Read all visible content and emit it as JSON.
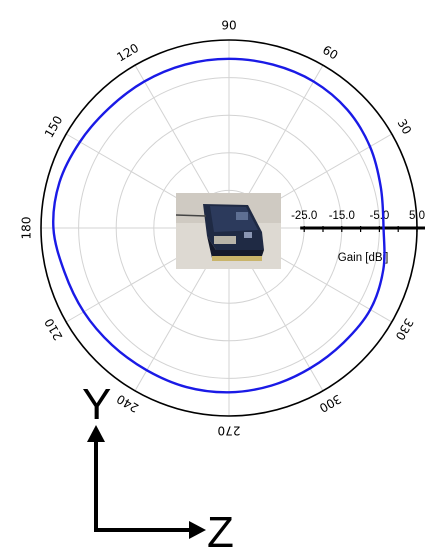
{
  "chart_data": {
    "type": "polar-line",
    "angle_ticks_deg": [
      0,
      30,
      60,
      90,
      120,
      150,
      180,
      210,
      240,
      270,
      300,
      330
    ],
    "angle_tick_labels": [
      "",
      "30",
      "60",
      "90",
      "120",
      "150",
      "180",
      "210",
      "240",
      "270",
      "300",
      "330"
    ],
    "radial_label": "Gain [dBi]",
    "radial_tick_labels": [
      "-25.0",
      "-15.0",
      "-5.0",
      "5.0"
    ],
    "radial_ticks": [
      -25,
      -15,
      -5,
      5
    ],
    "r_range": [
      -45,
      5
    ],
    "grid": true,
    "line_color": "#1a1ae6",
    "series": [
      {
        "angles_deg": [
          0,
          15,
          30,
          45,
          60,
          75,
          90,
          105,
          120,
          135,
          150,
          165,
          180,
          195,
          210,
          225,
          240,
          255,
          270,
          285,
          300,
          315,
          330,
          345,
          360
        ],
        "values_dbi": [
          -3.9,
          -3.2,
          -1.7,
          -0.5,
          0.0,
          0.0,
          0.0,
          0.0,
          0.0,
          0.1,
          0.8,
          1.7,
          1.7,
          0.3,
          -0.4,
          -1.0,
          -1.3,
          -1.2,
          -1.3,
          -1.6,
          -1.9,
          -1.9,
          -1.6,
          -2.5,
          -3.9
        ]
      }
    ]
  },
  "photo": {
    "name": "antenna-module-photo"
  },
  "axes_indicator": {
    "vertical_label": "Y",
    "horizontal_label": "Z"
  }
}
